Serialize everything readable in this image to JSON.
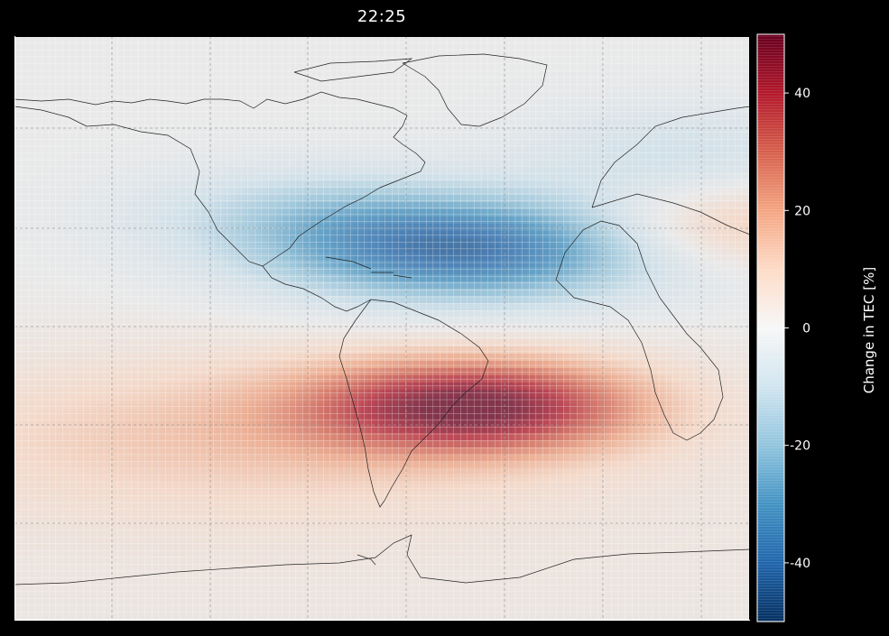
{
  "title": "22:25",
  "chart_data": {
    "type": "heatmap",
    "title": "22:25",
    "colorbar": {
      "label": "Change in TEC [%]",
      "range": [
        -50,
        50
      ],
      "ticks": [
        40,
        20,
        0,
        -20,
        -40
      ],
      "colormap": "RdBu_r"
    },
    "extent": {
      "lon": [
        -155,
        -5
      ],
      "lat": [
        -80,
        75
      ]
    },
    "anomalies": [
      {
        "name": "atlantic-depletion",
        "lon": -63,
        "lat": 18,
        "sx": 28,
        "sy": 10,
        "amp": -40
      },
      {
        "name": "gulf-extension",
        "lon": -95,
        "lat": 28,
        "sx": 25,
        "sy": 9,
        "amp": -12
      },
      {
        "name": "south-america-enhancement",
        "lon": -61,
        "lat": -23,
        "sx": 24,
        "sy": 9,
        "amp": 44
      },
      {
        "name": "southern-band",
        "lon": -110,
        "lat": -30,
        "sx": 45,
        "sy": 14,
        "amp": 12
      },
      {
        "name": "africa-enhancement",
        "lon": -10,
        "lat": 25,
        "sx": 18,
        "sy": 8,
        "amp": 16
      },
      {
        "name": "europe-depletion",
        "lon": -20,
        "lat": 43,
        "sx": 22,
        "sy": 10,
        "amp": -10
      },
      {
        "name": "background",
        "lon": -80,
        "lat": -50,
        "sx": 120,
        "sy": 30,
        "amp": 4
      }
    ],
    "grid": true
  }
}
